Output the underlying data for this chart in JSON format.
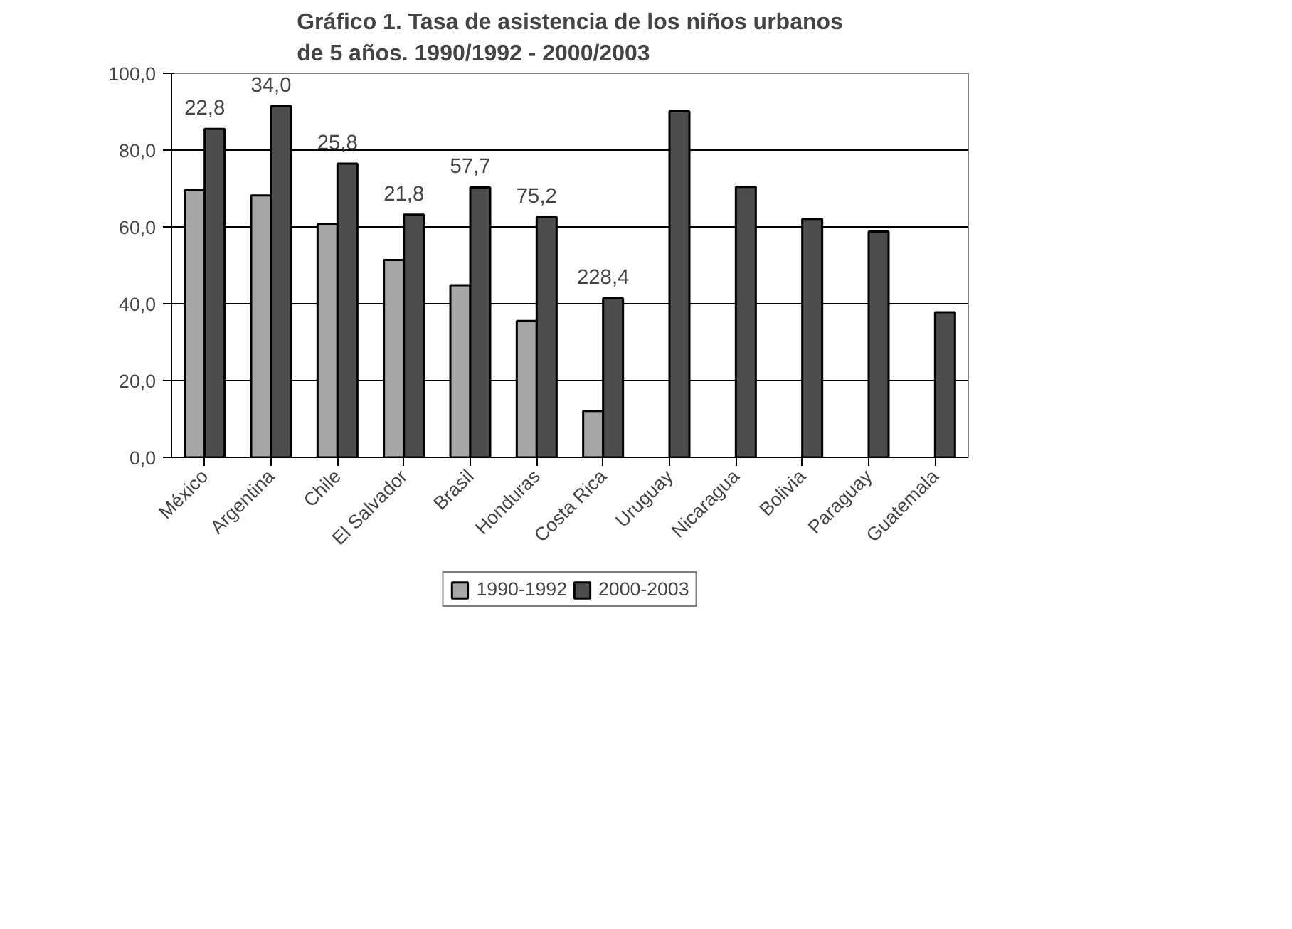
{
  "chart_data": {
    "type": "bar",
    "title": "Gráfico 1. Tasa de asistencia de los niños urbanos\nde 5 años. 1990/1992 - 2000/2003",
    "categories": [
      "México",
      "Argentina",
      "Chile",
      "El Salvador",
      "Brasil",
      "Honduras",
      "Costa Rica",
      "Uruguay",
      "Nicaragua",
      "Bolivia",
      "Paraguay",
      "Guatemala"
    ],
    "series": [
      {
        "name": "1990-1992",
        "color": "#a6a6a6",
        "values": [
          69.6,
          68.2,
          60.7,
          51.4,
          44.8,
          35.5,
          12.1,
          null,
          null,
          null,
          null,
          null
        ]
      },
      {
        "name": "2000-2003",
        "color": "#4d4d4d",
        "values": [
          85.5,
          91.5,
          76.5,
          63.2,
          70.3,
          62.6,
          41.4,
          90.1,
          70.4,
          62.1,
          58.8,
          37.8
        ]
      }
    ],
    "ylim": [
      0,
      100
    ],
    "yticks": [
      {
        "value": 0,
        "label": "0,0"
      },
      {
        "value": 20,
        "label": "20,0"
      },
      {
        "value": 40,
        "label": "40,0"
      },
      {
        "value": 60,
        "label": "60,0"
      },
      {
        "value": 80,
        "label": "80,0"
      },
      {
        "value": 100,
        "label": "100,0"
      }
    ],
    "grid": "y",
    "legend": "bottom",
    "annotations": [
      {
        "text": "22,8",
        "x": "México",
        "y": 85.5
      },
      {
        "text": "34,0",
        "x": "Argentina",
        "y": 91.5
      },
      {
        "text": "25,8",
        "x": "Chile",
        "y": 76.5
      },
      {
        "text": "21,8",
        "x": "El Salvador",
        "y": 63.2
      },
      {
        "text": "57,7",
        "x": "Brasil",
        "y": 70.3
      },
      {
        "text": "75,2",
        "x": "Honduras",
        "y": 62.6
      },
      {
        "text": "228,4",
        "x": "Costa Rica",
        "y": 41.4
      }
    ]
  }
}
